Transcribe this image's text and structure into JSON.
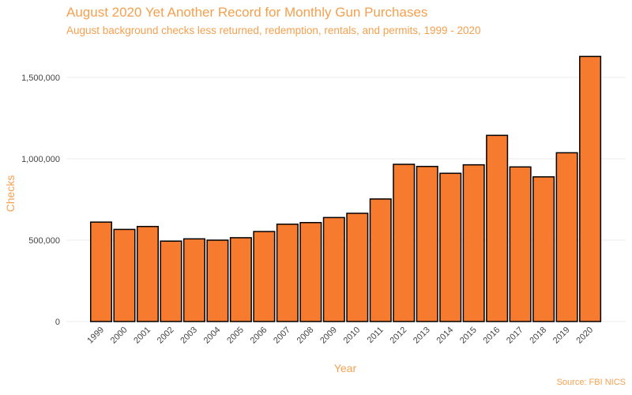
{
  "chart_data": {
    "type": "bar",
    "title": "August 2020 Yet Another Record for Monthly Gun Purchases",
    "subtitle": "August background checks less returned, redemption, rentals, and permits, 1999 - 2020",
    "xlabel": "Year",
    "ylabel": "Checks",
    "caption": "Source: FBI NICS",
    "categories": [
      "1999",
      "2000",
      "2001",
      "2002",
      "2003",
      "2004",
      "2005",
      "2006",
      "2007",
      "2008",
      "2009",
      "2010",
      "2011",
      "2012",
      "2013",
      "2014",
      "2015",
      "2016",
      "2017",
      "2018",
      "2019",
      "2020"
    ],
    "values": [
      611000,
      566000,
      584000,
      494000,
      508000,
      500000,
      515000,
      553000,
      598000,
      608000,
      639000,
      665000,
      753000,
      966000,
      953000,
      911000,
      963000,
      1144000,
      950000,
      889000,
      1037000,
      1629000
    ],
    "yticks": [
      0,
      500000,
      1000000,
      1500000
    ],
    "ytick_labels": [
      "0",
      "500,000",
      "1,000,000",
      "1,500,000"
    ],
    "ylim": [
      0,
      1700000
    ],
    "grid": true,
    "legend": "none",
    "bar_color": "#f77b2f",
    "bar_outline": "#000000",
    "text_color": "#f5a04f"
  }
}
